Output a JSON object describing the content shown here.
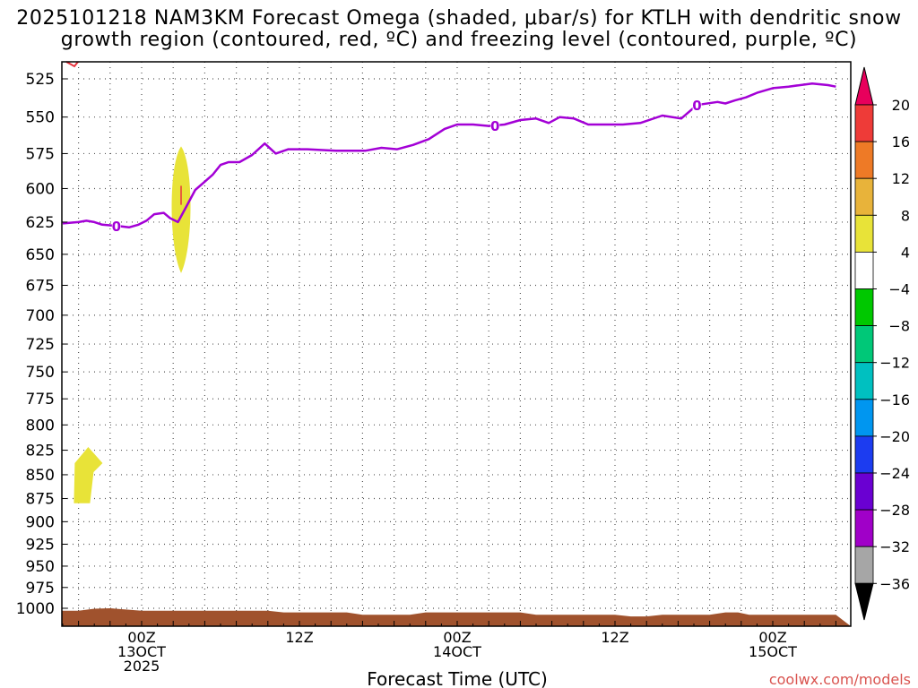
{
  "title": {
    "line1": "2025101218 NAM3KM Forecast Omega (shaded, μbar/s) for KTLH with dendritic snow",
    "line2": "growth region (contoured, red, ºC) and freezing level (contoured, purple, ºC)"
  },
  "chart_data": {
    "type": "time-height cross section",
    "title": "2025101218 NAM3KM Forecast Omega (shaded, μbar/s) for KTLH with dendritic snow growth region (contoured, red, ºC) and freezing level (contoured, purple, ºC)",
    "xlabel": "Forecast Time (UTC)",
    "ylabel": "",
    "xlim_hours": [
      -6,
      44
    ],
    "y_scale": "log pressure",
    "ylim_hpa": [
      1010,
      512
    ],
    "y_ticks": [
      "525",
      "550",
      "575",
      "600",
      "625",
      "650",
      "675",
      "700",
      "725",
      "750",
      "775",
      "800",
      "825",
      "850",
      "875",
      "900",
      "925",
      "950",
      "975",
      "1000"
    ],
    "x_ticks": [
      {
        "hour": 0,
        "line1": "00Z",
        "line2": "13OCT",
        "line3": "2025"
      },
      {
        "hour": 10,
        "line1": "12Z",
        "line2": "",
        "line3": ""
      },
      {
        "hour": 20,
        "line1": "00Z",
        "line2": "14OCT",
        "line3": ""
      },
      {
        "hour": 30,
        "line1": "12Z",
        "line2": "",
        "line3": ""
      },
      {
        "hour": 40,
        "line1": "00Z",
        "line2": "15OCT",
        "line3": ""
      }
    ],
    "freezing_level": {
      "color": "#a300d6",
      "label": "0",
      "label_hours": [
        -1.6,
        22.4,
        35.2
      ],
      "points": [
        [
          -5.0,
          626
        ],
        [
          -4.0,
          625
        ],
        [
          -3.5,
          624
        ],
        [
          -3.0,
          625
        ],
        [
          -2.5,
          627
        ],
        [
          -1.5,
          628
        ],
        [
          -0.8,
          629
        ],
        [
          -0.2,
          627
        ],
        [
          0.3,
          624
        ],
        [
          0.8,
          619
        ],
        [
          1.4,
          618
        ],
        [
          1.8,
          622
        ],
        [
          2.3,
          625
        ],
        [
          2.8,
          614
        ],
        [
          3.4,
          601
        ],
        [
          4.0,
          595
        ],
        [
          4.5,
          590
        ],
        [
          5.0,
          583
        ],
        [
          5.5,
          581
        ],
        [
          6.2,
          581
        ],
        [
          7.0,
          576
        ],
        [
          7.8,
          568
        ],
        [
          8.5,
          575
        ],
        [
          9.3,
          572
        ],
        [
          10.5,
          572
        ],
        [
          12.3,
          573
        ],
        [
          14.2,
          573
        ],
        [
          15.2,
          571
        ],
        [
          16.2,
          572
        ],
        [
          17.2,
          569
        ],
        [
          18.2,
          565
        ],
        [
          19.2,
          558
        ],
        [
          20.0,
          555
        ],
        [
          21.0,
          555
        ],
        [
          22.0,
          556
        ],
        [
          23.0,
          555
        ],
        [
          24.0,
          552
        ],
        [
          25.0,
          551
        ],
        [
          25.8,
          554
        ],
        [
          26.5,
          550
        ],
        [
          27.4,
          551
        ],
        [
          28.3,
          555
        ],
        [
          29.3,
          555
        ],
        [
          30.5,
          555
        ],
        [
          31.6,
          554
        ],
        [
          33.0,
          549
        ],
        [
          34.2,
          551
        ],
        [
          35.2,
          542
        ],
        [
          36.5,
          540
        ],
        [
          37.0,
          541
        ],
        [
          37.6,
          539
        ],
        [
          38.3,
          537
        ],
        [
          39.0,
          534
        ],
        [
          40.0,
          531
        ],
        [
          41.0,
          530
        ],
        [
          42.5,
          528
        ],
        [
          43.5,
          529
        ],
        [
          44.0,
          530
        ]
      ]
    },
    "dgz_contour": {
      "color": "#e8323c",
      "label": "dendritic snow growth region"
    },
    "omega_regions": [
      {
        "value_range": "4 to 8",
        "color": "#e8e338",
        "center_hour": 2.5,
        "top_hpa": 570,
        "bottom_hpa": 665
      },
      {
        "value_range": "4 to 8",
        "color": "#e8e338",
        "center_hour": -3.5,
        "top_hpa": 820,
        "bottom_hpa": 880
      }
    ],
    "terrain": {
      "color": "#a0522d",
      "description": "surface below ~1000 hPa"
    },
    "colorbar": {
      "labels": [
        "20",
        "16",
        "12",
        "8",
        "4",
        "−4",
        "−8",
        "−12",
        "−16",
        "−20",
        "−24",
        "−28",
        "−32",
        "−36"
      ],
      "colors": [
        "#e8005c",
        "#ee3b38",
        "#ee7a26",
        "#e8b33a",
        "#e8e338",
        "#ffffff",
        "#00c800",
        "#00c878",
        "#00c0c0",
        "#0096f0",
        "#1c3cf0",
        "#6a00d2",
        "#a000c8",
        "#a6a6a6",
        "#000000"
      ]
    }
  },
  "credit": "coolwx.com/models"
}
